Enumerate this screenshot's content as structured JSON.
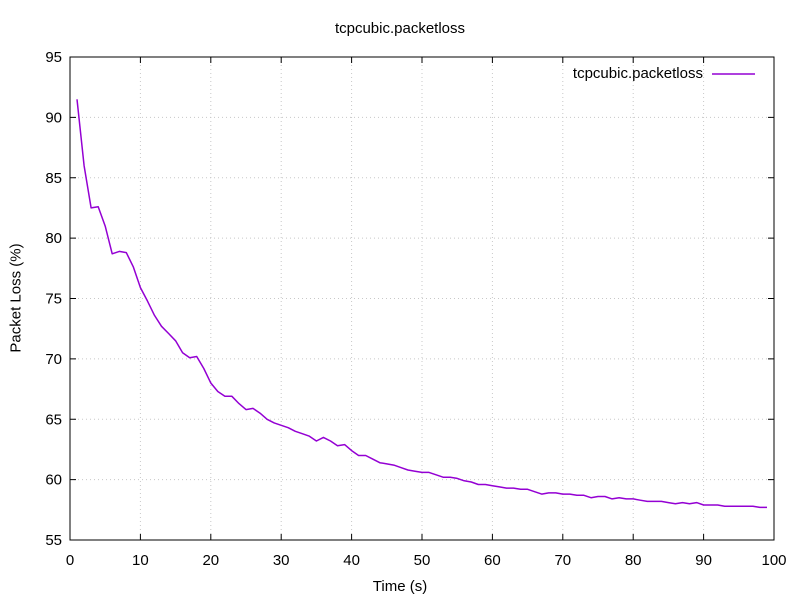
{
  "chart_data": {
    "type": "line",
    "title": "tcpcubic.packetloss",
    "xlabel": "Time (s)",
    "ylabel": "Packet Loss (%)",
    "xlim": [
      0,
      100
    ],
    "ylim": [
      55,
      95
    ],
    "xticks": [
      0,
      10,
      20,
      30,
      40,
      50,
      60,
      70,
      80,
      90,
      100
    ],
    "yticks": [
      55,
      60,
      65,
      70,
      75,
      80,
      85,
      90,
      95
    ],
    "grid": true,
    "legend_position": "top-right",
    "series": [
      {
        "name": "tcpcubic.packetloss",
        "color": "#9400d3",
        "x": [
          1,
          2,
          3,
          4,
          5,
          6,
          7,
          8,
          9,
          10,
          11,
          12,
          13,
          14,
          15,
          16,
          17,
          18,
          19,
          20,
          21,
          22,
          23,
          24,
          25,
          26,
          27,
          28,
          29,
          30,
          31,
          32,
          33,
          34,
          35,
          36,
          37,
          38,
          39,
          40,
          41,
          42,
          43,
          44,
          45,
          46,
          47,
          48,
          49,
          50,
          51,
          52,
          53,
          54,
          55,
          56,
          57,
          58,
          59,
          60,
          61,
          62,
          63,
          64,
          65,
          66,
          67,
          68,
          69,
          70,
          71,
          72,
          73,
          74,
          75,
          76,
          77,
          78,
          79,
          80,
          81,
          82,
          83,
          84,
          85,
          86,
          87,
          88,
          89,
          90,
          91,
          92,
          93,
          94,
          95,
          96,
          97,
          98,
          99
        ],
        "y": [
          91.5,
          86.0,
          82.5,
          82.6,
          81.0,
          78.7,
          78.9,
          78.8,
          77.6,
          75.9,
          74.8,
          73.6,
          72.7,
          72.1,
          71.5,
          70.5,
          70.1,
          70.2,
          69.2,
          68.0,
          67.3,
          66.9,
          66.9,
          66.3,
          65.8,
          65.9,
          65.5,
          65.0,
          64.7,
          64.5,
          64.3,
          64.0,
          63.8,
          63.6,
          63.2,
          63.5,
          63.2,
          62.8,
          62.9,
          62.4,
          62.0,
          62.0,
          61.7,
          61.4,
          61.3,
          61.2,
          61.0,
          60.8,
          60.7,
          60.6,
          60.6,
          60.4,
          60.2,
          60.2,
          60.1,
          59.9,
          59.8,
          59.6,
          59.6,
          59.5,
          59.4,
          59.3,
          59.3,
          59.2,
          59.2,
          59.0,
          58.8,
          58.9,
          58.9,
          58.8,
          58.8,
          58.7,
          58.7,
          58.5,
          58.6,
          58.6,
          58.4,
          58.5,
          58.4,
          58.4,
          58.3,
          58.2,
          58.2,
          58.2,
          58.1,
          58.0,
          58.1,
          58.0,
          58.1,
          57.9,
          57.9,
          57.9,
          57.8,
          57.8,
          57.8,
          57.8,
          57.8,
          57.7,
          57.7
        ]
      }
    ]
  }
}
